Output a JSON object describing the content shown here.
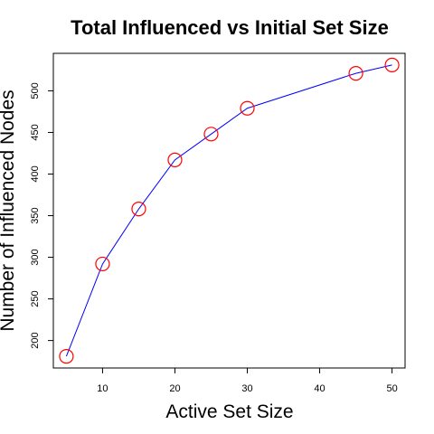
{
  "chart_data": {
    "type": "line",
    "title": "Total Influenced vs Initial Set Size",
    "xlabel": "Active Set Size",
    "ylabel": "Number of Influenced Nodes",
    "x": [
      5,
      10,
      15,
      20,
      25,
      30,
      45,
      50
    ],
    "series": [
      {
        "values": [
          181,
          292,
          358,
          417,
          448,
          479,
          521,
          531
        ]
      }
    ],
    "xlim": [
      3.2,
      51.8
    ],
    "ylim": [
      167,
      545
    ],
    "xticks": [
      10,
      20,
      30,
      40,
      50
    ],
    "yticks": [
      200,
      250,
      300,
      350,
      400,
      450,
      500
    ],
    "grid": false,
    "line_color": "#0000ff",
    "marker_color": "#ff0000",
    "marker": "open-circle"
  }
}
